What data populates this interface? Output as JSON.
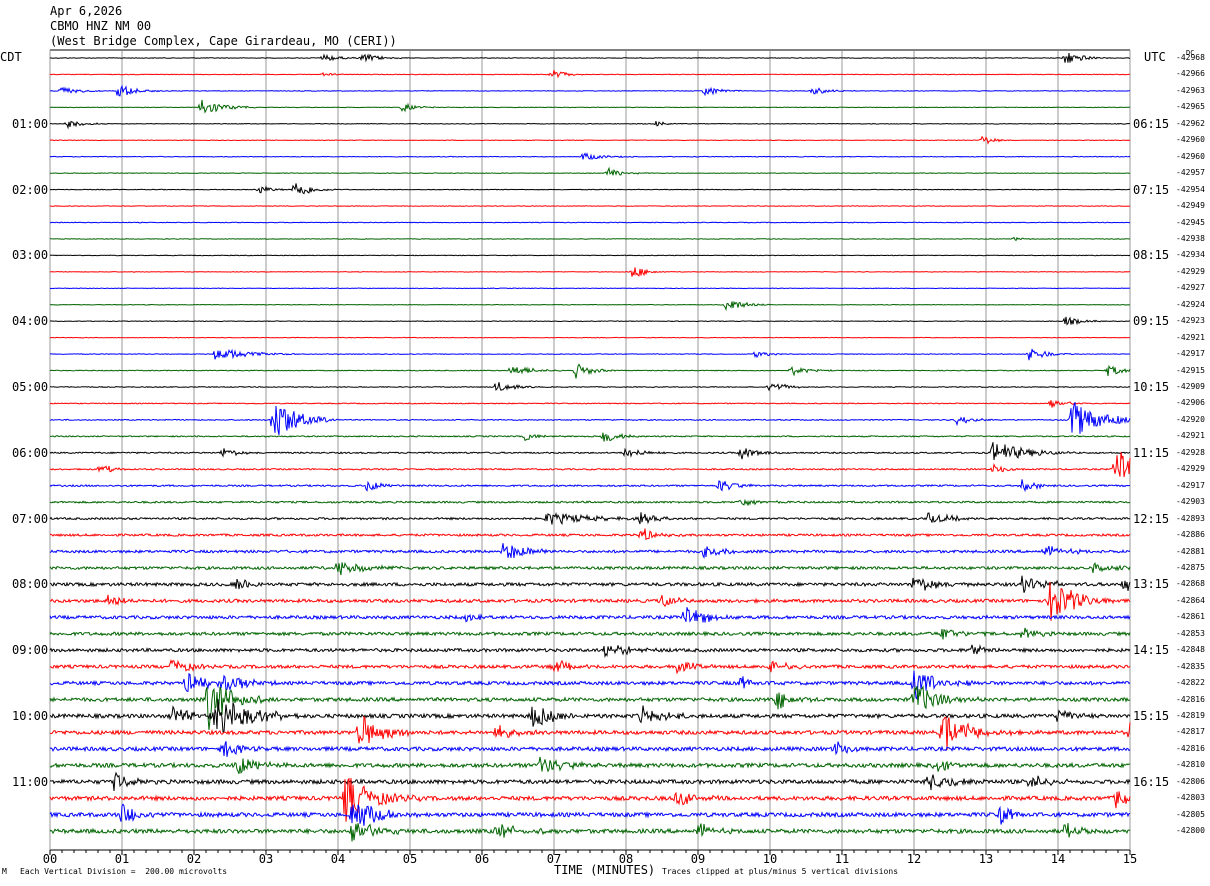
{
  "header": {
    "date": "Apr 6,2026",
    "station": "CBMO HNZ NM 00",
    "location": "(West Bridge Complex, Cape Girardeau, MO (CERI))"
  },
  "left_tz": "CDT",
  "right_tz": "UTC",
  "dc_label": "DC",
  "footer": {
    "scale": "Each Vertical Division =  200.00 microvolts",
    "clip": "Traces clipped at plus/minus 5 vertical divisions",
    "corner": "M"
  },
  "colors": {
    "black": "#000000",
    "red": "#ff0000",
    "blue": "#0000ff",
    "green": "#006400",
    "grid": "#808080"
  },
  "chart_data": {
    "type": "seismogram",
    "xlabel": "TIME (MINUTES)",
    "x_ticks": [
      "00",
      "01",
      "02",
      "03",
      "04",
      "05",
      "06",
      "07",
      "08",
      "09",
      "10",
      "11",
      "12",
      "13",
      "14",
      "15"
    ],
    "xlim": [
      0,
      15
    ],
    "trace_color_cycle": [
      "black",
      "red",
      "blue",
      "green"
    ],
    "left_labels": [
      {
        "trace": 4,
        "text": "01:00"
      },
      {
        "trace": 8,
        "text": "02:00"
      },
      {
        "trace": 12,
        "text": "03:00"
      },
      {
        "trace": 16,
        "text": "04:00"
      },
      {
        "trace": 20,
        "text": "05:00"
      },
      {
        "trace": 24,
        "text": "06:00"
      },
      {
        "trace": 28,
        "text": "07:00"
      },
      {
        "trace": 32,
        "text": "08:00"
      },
      {
        "trace": 36,
        "text": "09:00"
      },
      {
        "trace": 40,
        "text": "10:00"
      },
      {
        "trace": 44,
        "text": "11:00"
      }
    ],
    "right_labels": [
      {
        "trace": 4,
        "text": "06:15"
      },
      {
        "trace": 8,
        "text": "07:15"
      },
      {
        "trace": 12,
        "text": "08:15"
      },
      {
        "trace": 16,
        "text": "09:15"
      },
      {
        "trace": 20,
        "text": "10:15"
      },
      {
        "trace": 24,
        "text": "11:15"
      },
      {
        "trace": 28,
        "text": "12:15"
      },
      {
        "trace": 32,
        "text": "13:15"
      },
      {
        "trace": 36,
        "text": "14:15"
      },
      {
        "trace": 40,
        "text": "15:15"
      },
      {
        "trace": 44,
        "text": "16:15"
      }
    ],
    "dc_offsets": [
      "-42968",
      "-42966",
      "-42963",
      "-42965",
      "-42962",
      "-42960",
      "-42960",
      "-42957",
      "-42954",
      "-42949",
      "-42945",
      "-42938",
      "-42934",
      "-42929",
      "-42927",
      "-42924",
      "-42923",
      "-42921",
      "-42917",
      "-42915",
      "-42909",
      "-42906",
      "-42920",
      "-42921",
      "-42928",
      "-42929",
      "-42917",
      "-42903",
      "-42893",
      "-42886",
      "-42881",
      "-42875",
      "-42868",
      "-42864",
      "-42861",
      "-42853",
      "-42848",
      "-42835",
      "-42822",
      "-42816",
      "-42819",
      "-42817",
      "-42816",
      "-42810",
      "-42806",
      "-42803",
      "-42805",
      "-42800"
    ],
    "noise_level": [
      0.3,
      0.3,
      0.3,
      0.3,
      0.3,
      0.3,
      0.35,
      0.3,
      0.3,
      0.3,
      0.3,
      0.3,
      0.3,
      0.3,
      0.3,
      0.3,
      0.3,
      0.3,
      0.35,
      0.4,
      0.4,
      0.45,
      0.5,
      0.6,
      0.7,
      0.7,
      0.8,
      0.9,
      1.0,
      1.1,
      1.3,
      1.4,
      1.6,
      1.6,
      1.6,
      1.6,
      1.6,
      1.6,
      1.7,
      1.8,
      1.9,
      1.9,
      1.9,
      2.0,
      2.0,
      2.0,
      2.0,
      2.0
    ],
    "events": [
      {
        "trace": 0,
        "t": 3.8,
        "amp": 4,
        "dur": 0.2
      },
      {
        "trace": 0,
        "t": 4.35,
        "amp": 5,
        "dur": 0.2
      },
      {
        "trace": 0,
        "t": 14.1,
        "amp": 8,
        "dur": 0.2
      },
      {
        "trace": 1,
        "t": 6.97,
        "amp": 6,
        "dur": 0.15
      },
      {
        "trace": 1,
        "t": 3.8,
        "amp": 3,
        "dur": 0.1
      },
      {
        "trace": 2,
        "t": 0.15,
        "amp": 5,
        "dur": 0.2
      },
      {
        "trace": 2,
        "t": 0.95,
        "amp": 8,
        "dur": 0.2
      },
      {
        "trace": 2,
        "t": 9.1,
        "amp": 5,
        "dur": 0.2
      },
      {
        "trace": 2,
        "t": 10.6,
        "amp": 4,
        "dur": 0.2
      },
      {
        "trace": 3,
        "t": 2.1,
        "amp": 10,
        "dur": 0.25
      },
      {
        "trace": 3,
        "t": 4.9,
        "amp": 5,
        "dur": 0.15
      },
      {
        "trace": 4,
        "t": 0.25,
        "amp": 4,
        "dur": 0.2
      },
      {
        "trace": 4,
        "t": 8.4,
        "amp": 3,
        "dur": 0.15
      },
      {
        "trace": 5,
        "t": 12.95,
        "amp": 5,
        "dur": 0.15
      },
      {
        "trace": 6,
        "t": 7.4,
        "amp": 4,
        "dur": 0.25
      },
      {
        "trace": 7,
        "t": 7.75,
        "amp": 5,
        "dur": 0.2
      },
      {
        "trace": 8,
        "t": 2.9,
        "amp": 5,
        "dur": 0.15
      },
      {
        "trace": 8,
        "t": 3.4,
        "amp": 10,
        "dur": 0.2
      },
      {
        "trace": 11,
        "t": 13.4,
        "amp": 2,
        "dur": 0.1
      },
      {
        "trace": 13,
        "t": 8.1,
        "amp": 8,
        "dur": 0.15
      },
      {
        "trace": 15,
        "t": 9.4,
        "amp": 8,
        "dur": 0.2
      },
      {
        "trace": 16,
        "t": 14.1,
        "amp": 5,
        "dur": 0.2
      },
      {
        "trace": 18,
        "t": 2.3,
        "amp": 7,
        "dur": 0.4
      },
      {
        "trace": 18,
        "t": 9.8,
        "amp": 4,
        "dur": 0.15
      },
      {
        "trace": 18,
        "t": 13.6,
        "amp": 8,
        "dur": 0.2
      },
      {
        "trace": 19,
        "t": 6.4,
        "amp": 6,
        "dur": 0.25
      },
      {
        "trace": 19,
        "t": 7.3,
        "amp": 8,
        "dur": 0.2
      },
      {
        "trace": 19,
        "t": 10.3,
        "amp": 5,
        "dur": 0.2
      },
      {
        "trace": 19,
        "t": 14.7,
        "amp": 6,
        "dur": 0.2
      },
      {
        "trace": 20,
        "t": 6.2,
        "amp": 6,
        "dur": 0.2
      },
      {
        "trace": 20,
        "t": 10.0,
        "amp": 6,
        "dur": 0.2
      },
      {
        "trace": 21,
        "t": 13.9,
        "amp": 5,
        "dur": 0.2
      },
      {
        "trace": 22,
        "t": 3.1,
        "amp": 25,
        "dur": 0.3
      },
      {
        "trace": 22,
        "t": 14.2,
        "amp": 22,
        "dur": 0.35
      },
      {
        "trace": 22,
        "t": 12.6,
        "amp": 5,
        "dur": 0.2
      },
      {
        "trace": 23,
        "t": 7.7,
        "amp": 7,
        "dur": 0.2
      },
      {
        "trace": 23,
        "t": 6.6,
        "amp": 4,
        "dur": 0.2
      },
      {
        "trace": 24,
        "t": 2.4,
        "amp": 5,
        "dur": 0.2
      },
      {
        "trace": 24,
        "t": 8.0,
        "amp": 6,
        "dur": 0.2
      },
      {
        "trace": 24,
        "t": 13.1,
        "amp": 12,
        "dur": 0.4
      },
      {
        "trace": 24,
        "t": 9.6,
        "amp": 7,
        "dur": 0.2
      },
      {
        "trace": 25,
        "t": 0.7,
        "amp": 6,
        "dur": 0.15
      },
      {
        "trace": 25,
        "t": 14.8,
        "amp": 25,
        "dur": 0.3
      },
      {
        "trace": 25,
        "t": 13.1,
        "amp": 5,
        "dur": 0.2
      },
      {
        "trace": 26,
        "t": 4.4,
        "amp": 6,
        "dur": 0.2
      },
      {
        "trace": 26,
        "t": 9.3,
        "amp": 7,
        "dur": 0.2
      },
      {
        "trace": 26,
        "t": 13.5,
        "amp": 6,
        "dur": 0.2
      },
      {
        "trace": 27,
        "t": 9.6,
        "amp": 5,
        "dur": 0.2
      },
      {
        "trace": 28,
        "t": 6.9,
        "amp": 7,
        "dur": 0.5
      },
      {
        "trace": 28,
        "t": 8.2,
        "amp": 6,
        "dur": 0.2
      },
      {
        "trace": 28,
        "t": 12.2,
        "amp": 6,
        "dur": 0.3
      },
      {
        "trace": 29,
        "t": 8.2,
        "amp": 8,
        "dur": 0.2
      },
      {
        "trace": 30,
        "t": 6.3,
        "amp": 10,
        "dur": 0.3
      },
      {
        "trace": 30,
        "t": 9.1,
        "amp": 9,
        "dur": 0.2
      },
      {
        "trace": 30,
        "t": 13.8,
        "amp": 6,
        "dur": 0.3
      },
      {
        "trace": 31,
        "t": 4.0,
        "amp": 8,
        "dur": 0.3
      },
      {
        "trace": 31,
        "t": 14.5,
        "amp": 7,
        "dur": 0.2
      },
      {
        "trace": 32,
        "t": 2.6,
        "amp": 7,
        "dur": 0.2
      },
      {
        "trace": 32,
        "t": 12.0,
        "amp": 9,
        "dur": 0.3
      },
      {
        "trace": 32,
        "t": 13.5,
        "amp": 9,
        "dur": 0.3
      },
      {
        "trace": 32,
        "t": 14.9,
        "amp": 9,
        "dur": 0.2
      },
      {
        "trace": 33,
        "t": 13.9,
        "amp": 25,
        "dur": 0.3
      },
      {
        "trace": 33,
        "t": 8.5,
        "amp": 7,
        "dur": 0.2
      },
      {
        "trace": 33,
        "t": 0.8,
        "amp": 6,
        "dur": 0.2
      },
      {
        "trace": 34,
        "t": 8.8,
        "amp": 12,
        "dur": 0.3
      },
      {
        "trace": 34,
        "t": 5.8,
        "amp": 8,
        "dur": 0.2
      },
      {
        "trace": 35,
        "t": 12.4,
        "amp": 8,
        "dur": 0.2
      },
      {
        "trace": 35,
        "t": 13.5,
        "amp": 6,
        "dur": 0.2
      },
      {
        "trace": 36,
        "t": 7.7,
        "amp": 8,
        "dur": 0.3
      },
      {
        "trace": 36,
        "t": 12.8,
        "amp": 6,
        "dur": 0.2
      },
      {
        "trace": 37,
        "t": 1.7,
        "amp": 10,
        "dur": 0.2
      },
      {
        "trace": 37,
        "t": 7.0,
        "amp": 8,
        "dur": 0.2
      },
      {
        "trace": 37,
        "t": 8.7,
        "amp": 8,
        "dur": 0.2
      },
      {
        "trace": 37,
        "t": 10.0,
        "amp": 7,
        "dur": 0.2
      },
      {
        "trace": 38,
        "t": 1.9,
        "amp": 12,
        "dur": 0.3
      },
      {
        "trace": 38,
        "t": 2.4,
        "amp": 10,
        "dur": 0.3
      },
      {
        "trace": 38,
        "t": 12.0,
        "amp": 18,
        "dur": 0.3
      },
      {
        "trace": 38,
        "t": 9.6,
        "amp": 7,
        "dur": 0.2
      },
      {
        "trace": 39,
        "t": 2.2,
        "amp": 30,
        "dur": 0.3
      },
      {
        "trace": 39,
        "t": 12.0,
        "amp": 18,
        "dur": 0.3
      },
      {
        "trace": 39,
        "t": 10.1,
        "amp": 10,
        "dur": 0.2
      },
      {
        "trace": 40,
        "t": 2.3,
        "amp": 25,
        "dur": 0.4
      },
      {
        "trace": 40,
        "t": 1.7,
        "amp": 10,
        "dur": 0.3
      },
      {
        "trace": 40,
        "t": 6.7,
        "amp": 12,
        "dur": 0.3
      },
      {
        "trace": 40,
        "t": 8.2,
        "amp": 10,
        "dur": 0.3
      },
      {
        "trace": 40,
        "t": 14.0,
        "amp": 8,
        "dur": 0.2
      },
      {
        "trace": 41,
        "t": 4.3,
        "amp": 18,
        "dur": 0.3
      },
      {
        "trace": 41,
        "t": 12.4,
        "amp": 20,
        "dur": 0.35
      },
      {
        "trace": 41,
        "t": 15.0,
        "amp": 10,
        "dur": 0.1
      },
      {
        "trace": 41,
        "t": 6.2,
        "amp": 8,
        "dur": 0.2
      },
      {
        "trace": 42,
        "t": 2.4,
        "amp": 10,
        "dur": 0.2
      },
      {
        "trace": 42,
        "t": 10.9,
        "amp": 9,
        "dur": 0.2
      },
      {
        "trace": 43,
        "t": 2.6,
        "amp": 10,
        "dur": 0.3
      },
      {
        "trace": 43,
        "t": 6.8,
        "amp": 10,
        "dur": 0.3
      },
      {
        "trace": 43,
        "t": 12.3,
        "amp": 8,
        "dur": 0.2
      },
      {
        "trace": 44,
        "t": 0.9,
        "amp": 10,
        "dur": 0.2
      },
      {
        "trace": 44,
        "t": 12.2,
        "amp": 10,
        "dur": 0.3
      },
      {
        "trace": 44,
        "t": 13.6,
        "amp": 9,
        "dur": 0.2
      },
      {
        "trace": 45,
        "t": 4.1,
        "amp": 25,
        "dur": 0.35
      },
      {
        "trace": 45,
        "t": 8.7,
        "amp": 9,
        "dur": 0.2
      },
      {
        "trace": 45,
        "t": 14.8,
        "amp": 10,
        "dur": 0.2
      },
      {
        "trace": 46,
        "t": 1.0,
        "amp": 12,
        "dur": 0.2
      },
      {
        "trace": 46,
        "t": 4.2,
        "amp": 20,
        "dur": 0.3
      },
      {
        "trace": 46,
        "t": 13.2,
        "amp": 10,
        "dur": 0.2
      },
      {
        "trace": 47,
        "t": 4.2,
        "amp": 14,
        "dur": 0.3
      },
      {
        "trace": 47,
        "t": 6.2,
        "amp": 10,
        "dur": 0.3
      },
      {
        "trace": 47,
        "t": 9.0,
        "amp": 8,
        "dur": 0.2
      },
      {
        "trace": 47,
        "t": 14.1,
        "amp": 8,
        "dur": 0.2
      }
    ]
  }
}
